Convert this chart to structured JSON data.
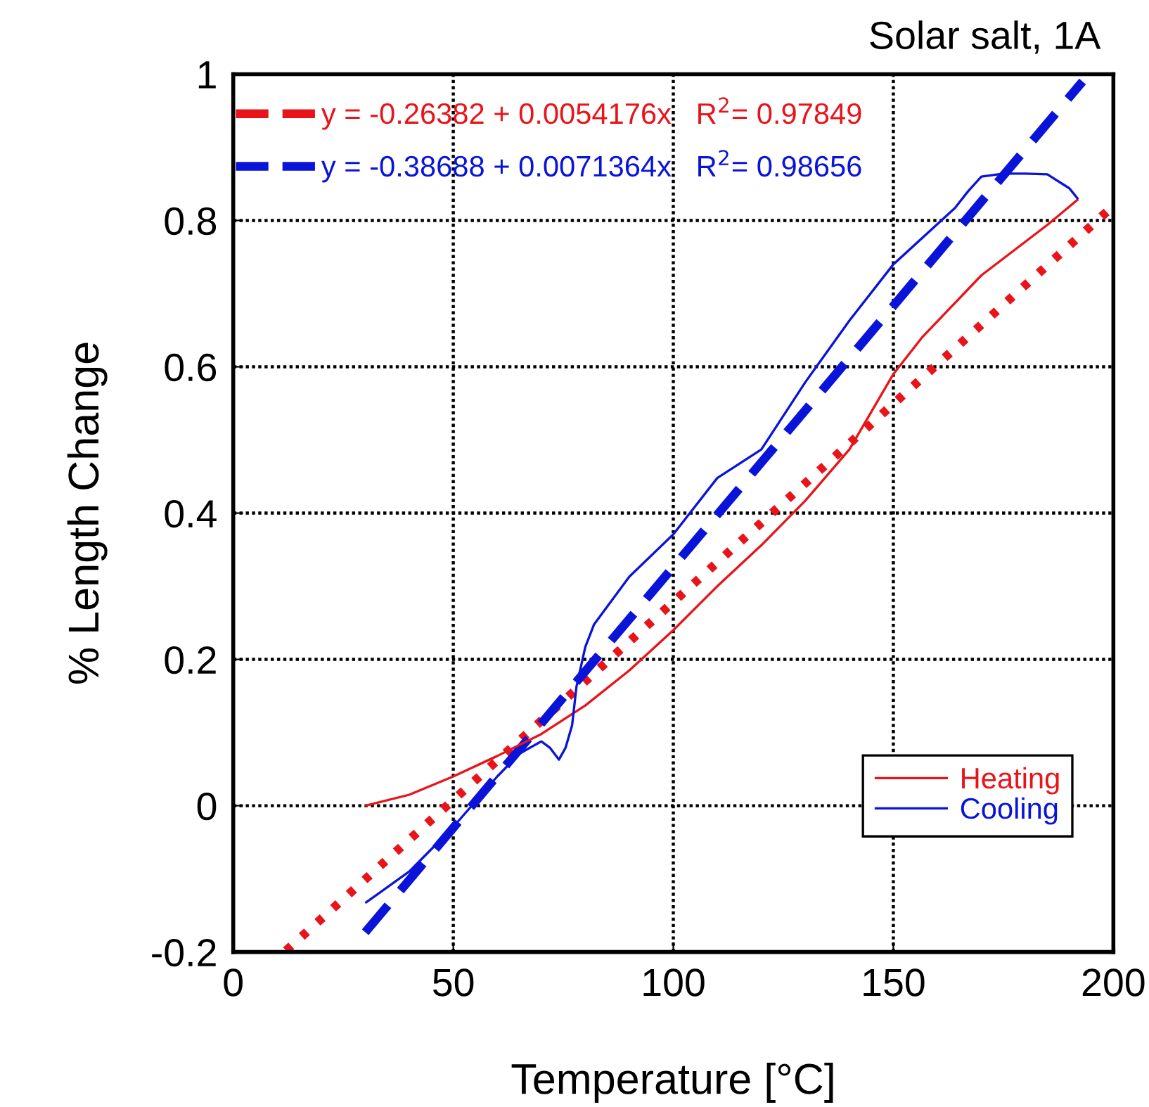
{
  "chart_data": {
    "type": "line",
    "title": "Solar salt, 1A",
    "xlabel": "Temperature [°C]",
    "ylabel": "% Length Change",
    "xlim": [
      0,
      200
    ],
    "xticks": [
      0,
      50,
      100,
      150,
      200
    ],
    "ylim": [
      -0.2,
      1
    ],
    "yticks": [
      -0.2,
      0,
      0.2,
      0.4,
      0.6,
      0.8,
      1
    ],
    "annotations": [
      "y = -0.26382 + 0.0054176x   R$^{2}$= 0.97849",
      "y = -0.38688 + 0.0071364x   R$^{2}$= 0.98656"
    ],
    "grid": true,
    "legend": "bottom right",
    "marker": "none",
    "series": [
      {
        "color": "#e8141a",
        "line_style": "dotted",
        "x": [
          12,
          200
        ],
        "values": [
          -0.198,
          0.82
        ]
      },
      {
        "color": "#0a14d8",
        "line_style": "dashed",
        "x": [
          30,
          193
        ],
        "values": [
          -0.173,
          0.99
        ]
      },
      {
        "name": "Heating",
        "color": "#e8141a",
        "line_style": "solid",
        "x": [
          30,
          40,
          50,
          60,
          70,
          80,
          90,
          100,
          110,
          120,
          130,
          140,
          150,
          156.5,
          170,
          185,
          192
        ],
        "values": [
          0.0,
          0.015,
          0.04,
          0.068,
          0.098,
          0.137,
          0.185,
          0.24,
          0.3,
          0.356,
          0.417,
          0.487,
          0.59,
          0.64,
          0.725,
          0.794,
          0.829
        ]
      },
      {
        "name": "Cooling",
        "color": "#0a14d8",
        "line_style": "solid",
        "x": [
          192,
          190,
          185,
          180,
          175,
          170,
          167,
          164,
          150,
          140,
          130,
          120,
          110,
          100,
          90,
          82,
          80,
          78,
          77,
          75.5,
          74,
          72,
          70,
          65,
          60,
          50,
          40,
          30
        ],
        "values": [
          0.829,
          0.844,
          0.863,
          0.864,
          0.864,
          0.86,
          0.84,
          0.817,
          0.74,
          0.663,
          0.579,
          0.487,
          0.448,
          0.371,
          0.313,
          0.248,
          0.217,
          0.163,
          0.11,
          0.079,
          0.063,
          0.079,
          0.088,
          0.071,
          0.04,
          -0.029,
          -0.09,
          -0.133
        ]
      }
    ]
  }
}
